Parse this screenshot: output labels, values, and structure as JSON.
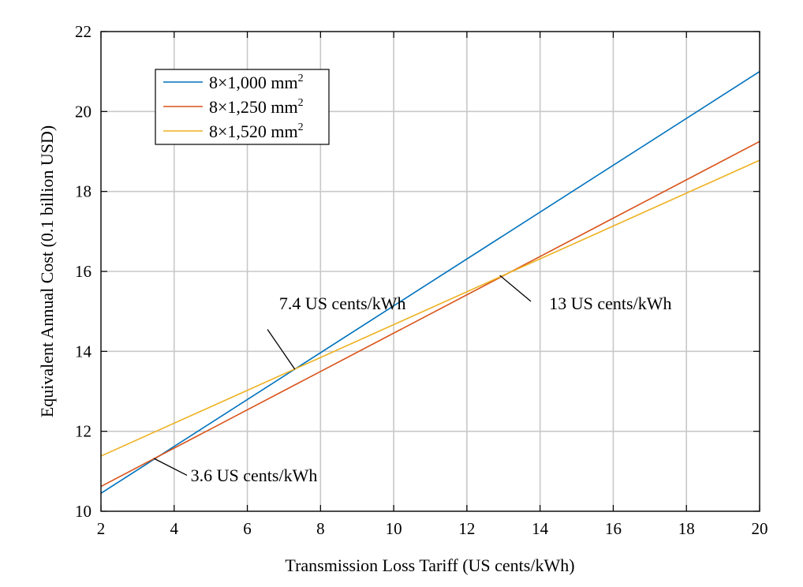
{
  "chart_data": {
    "type": "line",
    "title": "",
    "xlabel": "Transmission Loss Tariff (US cents/kWh)",
    "ylabel": "Equivalent Annual Cost (0.1 billion USD)",
    "xlim": [
      2,
      20
    ],
    "ylim": [
      10,
      22
    ],
    "xticks": [
      2,
      4,
      6,
      8,
      10,
      12,
      14,
      16,
      18,
      20
    ],
    "yticks": [
      10,
      12,
      14,
      16,
      18,
      20,
      22
    ],
    "grid": true,
    "legend_position": "top-left",
    "series": [
      {
        "name": "8×1,000 mm²",
        "label_base": "8×1,000 mm",
        "label_sup": "2",
        "color": "#0072BD",
        "x": [
          2,
          20
        ],
        "y": [
          10.45,
          21.0
        ]
      },
      {
        "name": "8×1,250 mm²",
        "label_base": "8×1,250 mm",
        "label_sup": "2",
        "color": "#D95319",
        "x": [
          2,
          20
        ],
        "y": [
          10.62,
          19.25
        ]
      },
      {
        "name": "8×1,520 mm²",
        "label_base": "8×1,520 mm",
        "label_sup": "2",
        "color": "#EDB120",
        "x": [
          2,
          20
        ],
        "y": [
          11.38,
          18.78
        ]
      }
    ],
    "annotations": [
      {
        "text": "7.4 US cents/kWh",
        "point": [
          7.3,
          13.55
        ],
        "label_at": [
          8.6,
          15.05
        ],
        "leader_from": [
          6.55,
          14.55
        ],
        "anchor": "middle"
      },
      {
        "text": "13 US cents/kWh",
        "point": [
          12.9,
          15.9
        ],
        "label_at": [
          14.25,
          15.05
        ],
        "leader_from": [
          13.75,
          15.25
        ],
        "anchor": "start"
      },
      {
        "text": "3.6 US cents/kWh",
        "point": [
          3.45,
          11.32
        ],
        "label_at": [
          4.45,
          10.75
        ],
        "leader_from": [
          4.35,
          10.9
        ],
        "anchor": "start"
      }
    ]
  }
}
